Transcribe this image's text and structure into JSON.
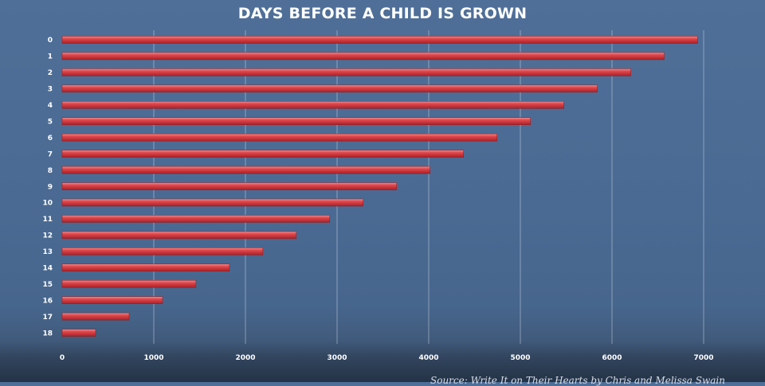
{
  "chart_data": {
    "type": "bar",
    "orientation": "horizontal",
    "title": "DAYS BEFORE A CHILD IS GROWN",
    "categories": [
      "0",
      "1",
      "2",
      "3",
      "4",
      "5",
      "6",
      "7",
      "8",
      "9",
      "10",
      "11",
      "12",
      "13",
      "14",
      "15",
      "16",
      "17",
      "18"
    ],
    "values": [
      6935,
      6570,
      6205,
      5840,
      5475,
      5110,
      4745,
      4380,
      4015,
      3650,
      3285,
      2920,
      2555,
      2190,
      1825,
      1460,
      1095,
      730,
      365
    ],
    "xticks": [
      0,
      1000,
      2000,
      3000,
      4000,
      5000,
      6000,
      7000
    ],
    "xlim": [
      0,
      7000
    ],
    "grid": true,
    "bar_color": "#e0474c",
    "source": "Source: Write It on Their Hearts by Chris and Melissa Swain"
  }
}
